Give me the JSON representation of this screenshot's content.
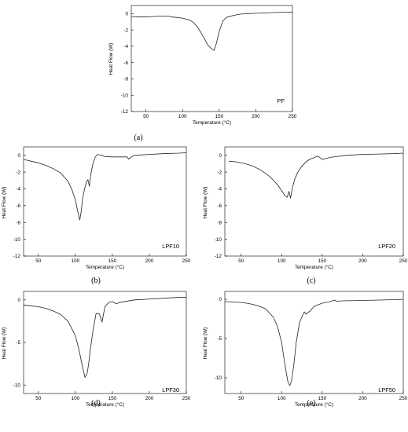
{
  "chart_data": [
    {
      "type": "line",
      "caption": "(a)",
      "label": "PF",
      "xlabel": "Temperature (°C)",
      "ylabel": "Heat Flow (W)",
      "xlim": [
        30,
        250
      ],
      "ylim": [
        -12,
        1
      ],
      "xticks": [
        50,
        100,
        150,
        200,
        250
      ],
      "yticks": [
        0,
        -2,
        -4,
        -6,
        -8,
        -10,
        -12
      ],
      "x": [
        30,
        40,
        50,
        60,
        70,
        80,
        85,
        90,
        100,
        110,
        115,
        120,
        125,
        130,
        135,
        140,
        143,
        146,
        150,
        155,
        160,
        170,
        180,
        200,
        220,
        240,
        250
      ],
      "y": [
        -0.35,
        -0.4,
        -0.4,
        -0.35,
        -0.3,
        -0.3,
        -0.4,
        -0.45,
        -0.55,
        -0.8,
        -1.1,
        -1.6,
        -2.3,
        -3.1,
        -3.9,
        -4.35,
        -4.5,
        -3.7,
        -2.2,
        -0.9,
        -0.45,
        -0.2,
        -0.05,
        0.05,
        0.12,
        0.18,
        0.2
      ]
    },
    {
      "type": "line",
      "caption": "(b)",
      "label": "LPF10",
      "xlabel": "Temperature (°C)",
      "ylabel": "Heat Flow (W)",
      "xlim": [
        30,
        250
      ],
      "ylim": [
        -12,
        1
      ],
      "xticks": [
        50,
        100,
        150,
        200,
        250
      ],
      "yticks": [
        0,
        -2,
        -4,
        -6,
        -8,
        -10,
        -12
      ],
      "x": [
        30,
        40,
        50,
        60,
        70,
        80,
        90,
        95,
        100,
        103,
        106,
        108,
        110,
        113,
        115,
        117,
        119,
        121,
        124,
        127,
        130,
        135,
        140,
        150,
        160,
        170,
        172,
        175,
        180,
        200,
        220,
        240,
        250
      ],
      "y": [
        -0.5,
        -0.7,
        -0.9,
        -1.2,
        -1.6,
        -2.1,
        -3.1,
        -4.0,
        -5.3,
        -6.6,
        -7.7,
        -6.6,
        -5.0,
        -3.8,
        -3.2,
        -2.9,
        -3.7,
        -2.2,
        -0.9,
        -0.2,
        0.1,
        0.0,
        -0.15,
        -0.2,
        -0.2,
        -0.2,
        -0.45,
        -0.25,
        0.0,
        0.1,
        0.2,
        0.25,
        0.3
      ]
    },
    {
      "type": "line",
      "caption": "(c)",
      "label": "LPF20",
      "xlabel": "Temperature (°C)",
      "ylabel": "Heat Flow (W)",
      "xlim": [
        30,
        250
      ],
      "ylim": [
        -12,
        1
      ],
      "xticks": [
        50,
        100,
        150,
        200,
        250
      ],
      "yticks": [
        0,
        -2,
        -4,
        -6,
        -8,
        -10,
        -12
      ],
      "x": [
        35,
        45,
        55,
        65,
        75,
        85,
        95,
        100,
        104,
        107,
        109,
        111,
        113,
        116,
        120,
        125,
        130,
        135,
        140,
        144,
        147,
        150,
        160,
        180,
        200,
        220,
        240,
        250
      ],
      "y": [
        -0.7,
        -0.8,
        -1.0,
        -1.3,
        -1.8,
        -2.5,
        -3.5,
        -4.2,
        -4.8,
        -5.0,
        -4.3,
        -5.1,
        -4.0,
        -2.9,
        -2.0,
        -1.3,
        -0.8,
        -0.45,
        -0.3,
        -0.1,
        -0.25,
        -0.5,
        -0.25,
        0.0,
        0.1,
        0.15,
        0.2,
        0.25
      ]
    },
    {
      "type": "line",
      "caption": "(d)",
      "label": "LPF30",
      "xlabel": "Temperature (°C)",
      "ylabel": "Heat Flow (W)",
      "xlim": [
        30,
        250
      ],
      "ylim": [
        -11,
        1
      ],
      "xticks": [
        50,
        100,
        150,
        200,
        250
      ],
      "yticks": [
        0,
        -5,
        -10
      ],
      "x": [
        30,
        40,
        50,
        60,
        70,
        80,
        90,
        100,
        105,
        110,
        113,
        116,
        118,
        120,
        124,
        128,
        132,
        134,
        136,
        138,
        140,
        145,
        150,
        155,
        160,
        180,
        200,
        220,
        240,
        250
      ],
      "y": [
        -0.6,
        -0.7,
        -0.8,
        -1.0,
        -1.3,
        -1.7,
        -2.5,
        -4.2,
        -5.9,
        -8.0,
        -9.1,
        -8.6,
        -7.5,
        -6.0,
        -3.5,
        -1.6,
        -1.6,
        -2.0,
        -2.6,
        -1.7,
        -0.8,
        -0.3,
        -0.2,
        -0.45,
        -0.3,
        0.0,
        0.1,
        0.2,
        0.3,
        0.3
      ]
    },
    {
      "type": "line",
      "caption": "(e)",
      "label": "LPF50",
      "xlabel": "Temperature (°C)",
      "ylabel": "Heat Flow (W)",
      "xlim": [
        30,
        250
      ],
      "ylim": [
        -12,
        1
      ],
      "xticks": [
        50,
        100,
        150,
        200,
        250
      ],
      "yticks": [
        0,
        -5,
        -10
      ],
      "x": [
        30,
        40,
        50,
        60,
        70,
        80,
        90,
        95,
        100,
        103,
        106,
        108,
        110,
        112,
        115,
        118,
        122,
        126,
        128,
        130,
        135,
        140,
        150,
        160,
        165,
        168,
        175,
        200,
        220,
        240,
        250
      ],
      "y": [
        -0.3,
        -0.35,
        -0.4,
        -0.55,
        -0.8,
        -1.2,
        -2.3,
        -3.5,
        -5.5,
        -7.6,
        -9.5,
        -10.6,
        -11.0,
        -10.5,
        -8.4,
        -5.5,
        -3.0,
        -2.0,
        -1.6,
        -1.9,
        -1.5,
        -0.9,
        -0.5,
        -0.3,
        -0.1,
        -0.25,
        -0.2,
        -0.15,
        -0.1,
        -0.05,
        0.0
      ]
    }
  ]
}
